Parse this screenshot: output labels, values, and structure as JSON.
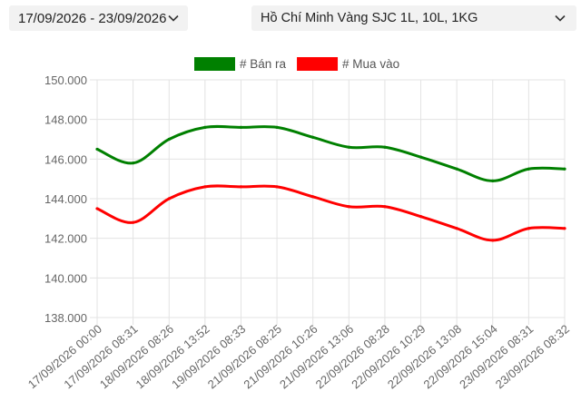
{
  "toolbar": {
    "date_range": "17/09/2026 - 23/09/2026",
    "product": "Hồ Chí Minh Vàng SJC 1L, 10L, 1KG",
    "chevron_icon": "chevron-down-icon"
  },
  "chart_data": {
    "type": "line",
    "categories": [
      "17/09/2026 00:00",
      "17/09/2026 08:31",
      "18/09/2026 08:26",
      "18/09/2026 13:52",
      "19/09/2026 08:33",
      "21/09/2026 08:25",
      "21/09/2026 10:26",
      "21/09/2026 13:06",
      "22/09/2026 08:28",
      "22/09/2026 10:29",
      "22/09/2026 13:08",
      "22/09/2026 15:04",
      "23/09/2026 08:31",
      "23/09/2026 08:32"
    ],
    "series": [
      {
        "name": "# Bán ra",
        "color": "#008000",
        "values": [
          146.5,
          145.8,
          147.0,
          147.6,
          147.6,
          147.6,
          147.1,
          146.6,
          146.6,
          146.1,
          145.5,
          144.9,
          145.5,
          145.5
        ]
      },
      {
        "name": "# Mua vào",
        "color": "#ff0000",
        "values": [
          143.5,
          142.8,
          144.0,
          144.6,
          144.6,
          144.6,
          144.1,
          143.6,
          143.6,
          143.1,
          142.5,
          141.9,
          142.5,
          142.5
        ]
      }
    ],
    "ylim": [
      138,
      150
    ],
    "y_ticks": [
      "138.000",
      "140.000",
      "142.000",
      "144.000",
      "146.000",
      "148.000",
      "150.000"
    ],
    "grid": true,
    "legend_position": "top-center"
  }
}
